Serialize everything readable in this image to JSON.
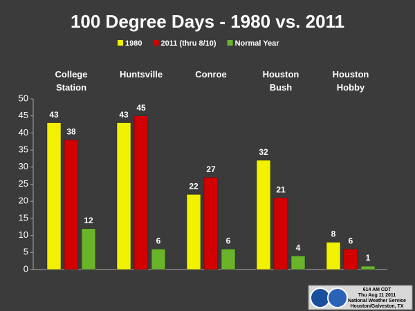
{
  "chart_data": {
    "type": "bar",
    "title": "100 Degree Days - 1980 vs. 2011",
    "categories": [
      "College Station",
      "Huntsville",
      "Conroe",
      "Houston Bush",
      "Houston Hobby"
    ],
    "series": [
      {
        "name": "1980",
        "color": "#f2f200",
        "values": [
          43,
          43,
          22,
          32,
          8
        ]
      },
      {
        "name": "2011 (thru 8/10)",
        "color": "#d40000",
        "values": [
          38,
          45,
          27,
          21,
          6
        ]
      },
      {
        "name": "Normal Year",
        "color": "#6ab42a",
        "values": [
          12,
          6,
          6,
          4,
          1
        ]
      }
    ],
    "ylim": [
      0,
      50
    ],
    "yticks": [
      0,
      5,
      10,
      15,
      20,
      25,
      30,
      35,
      40,
      45,
      50
    ],
    "footer": [
      "614 AM CDT",
      "Thu Aug 11 2011",
      "National Weather Service",
      "Houston/Galveston, TX"
    ]
  }
}
